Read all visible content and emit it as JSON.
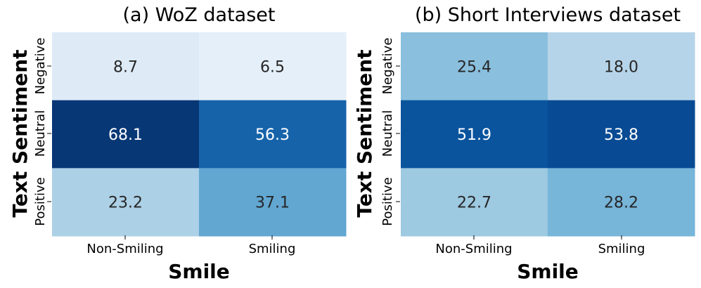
{
  "chart_data": [
    {
      "type": "heatmap",
      "title": "(a) WoZ dataset",
      "xlabel": "Smile",
      "ylabel": "Text Sentiment",
      "x_categories": [
        "Non-Smiling",
        "Smiling"
      ],
      "y_categories": [
        "Negative",
        "Neutral",
        "Positive"
      ],
      "values": [
        [
          8.7,
          6.5
        ],
        [
          68.1,
          56.3
        ],
        [
          23.2,
          37.1
        ]
      ],
      "vmin": 0,
      "vmax": 70,
      "colormap": "Blues",
      "colorbar": false
    },
    {
      "type": "heatmap",
      "title": "(b) Short Interviews dataset",
      "xlabel": "Smile",
      "ylabel": "Text Sentiment",
      "x_categories": [
        "Non-Smiling",
        "Smiling"
      ],
      "y_categories": [
        "Negative",
        "Neutral",
        "Positive"
      ],
      "values": [
        [
          25.4,
          18.0
        ],
        [
          51.9,
          53.8
        ],
        [
          22.7,
          28.2
        ]
      ],
      "vmin": 0,
      "vmax": 60,
      "colormap": "Blues",
      "colorbar": false
    }
  ]
}
